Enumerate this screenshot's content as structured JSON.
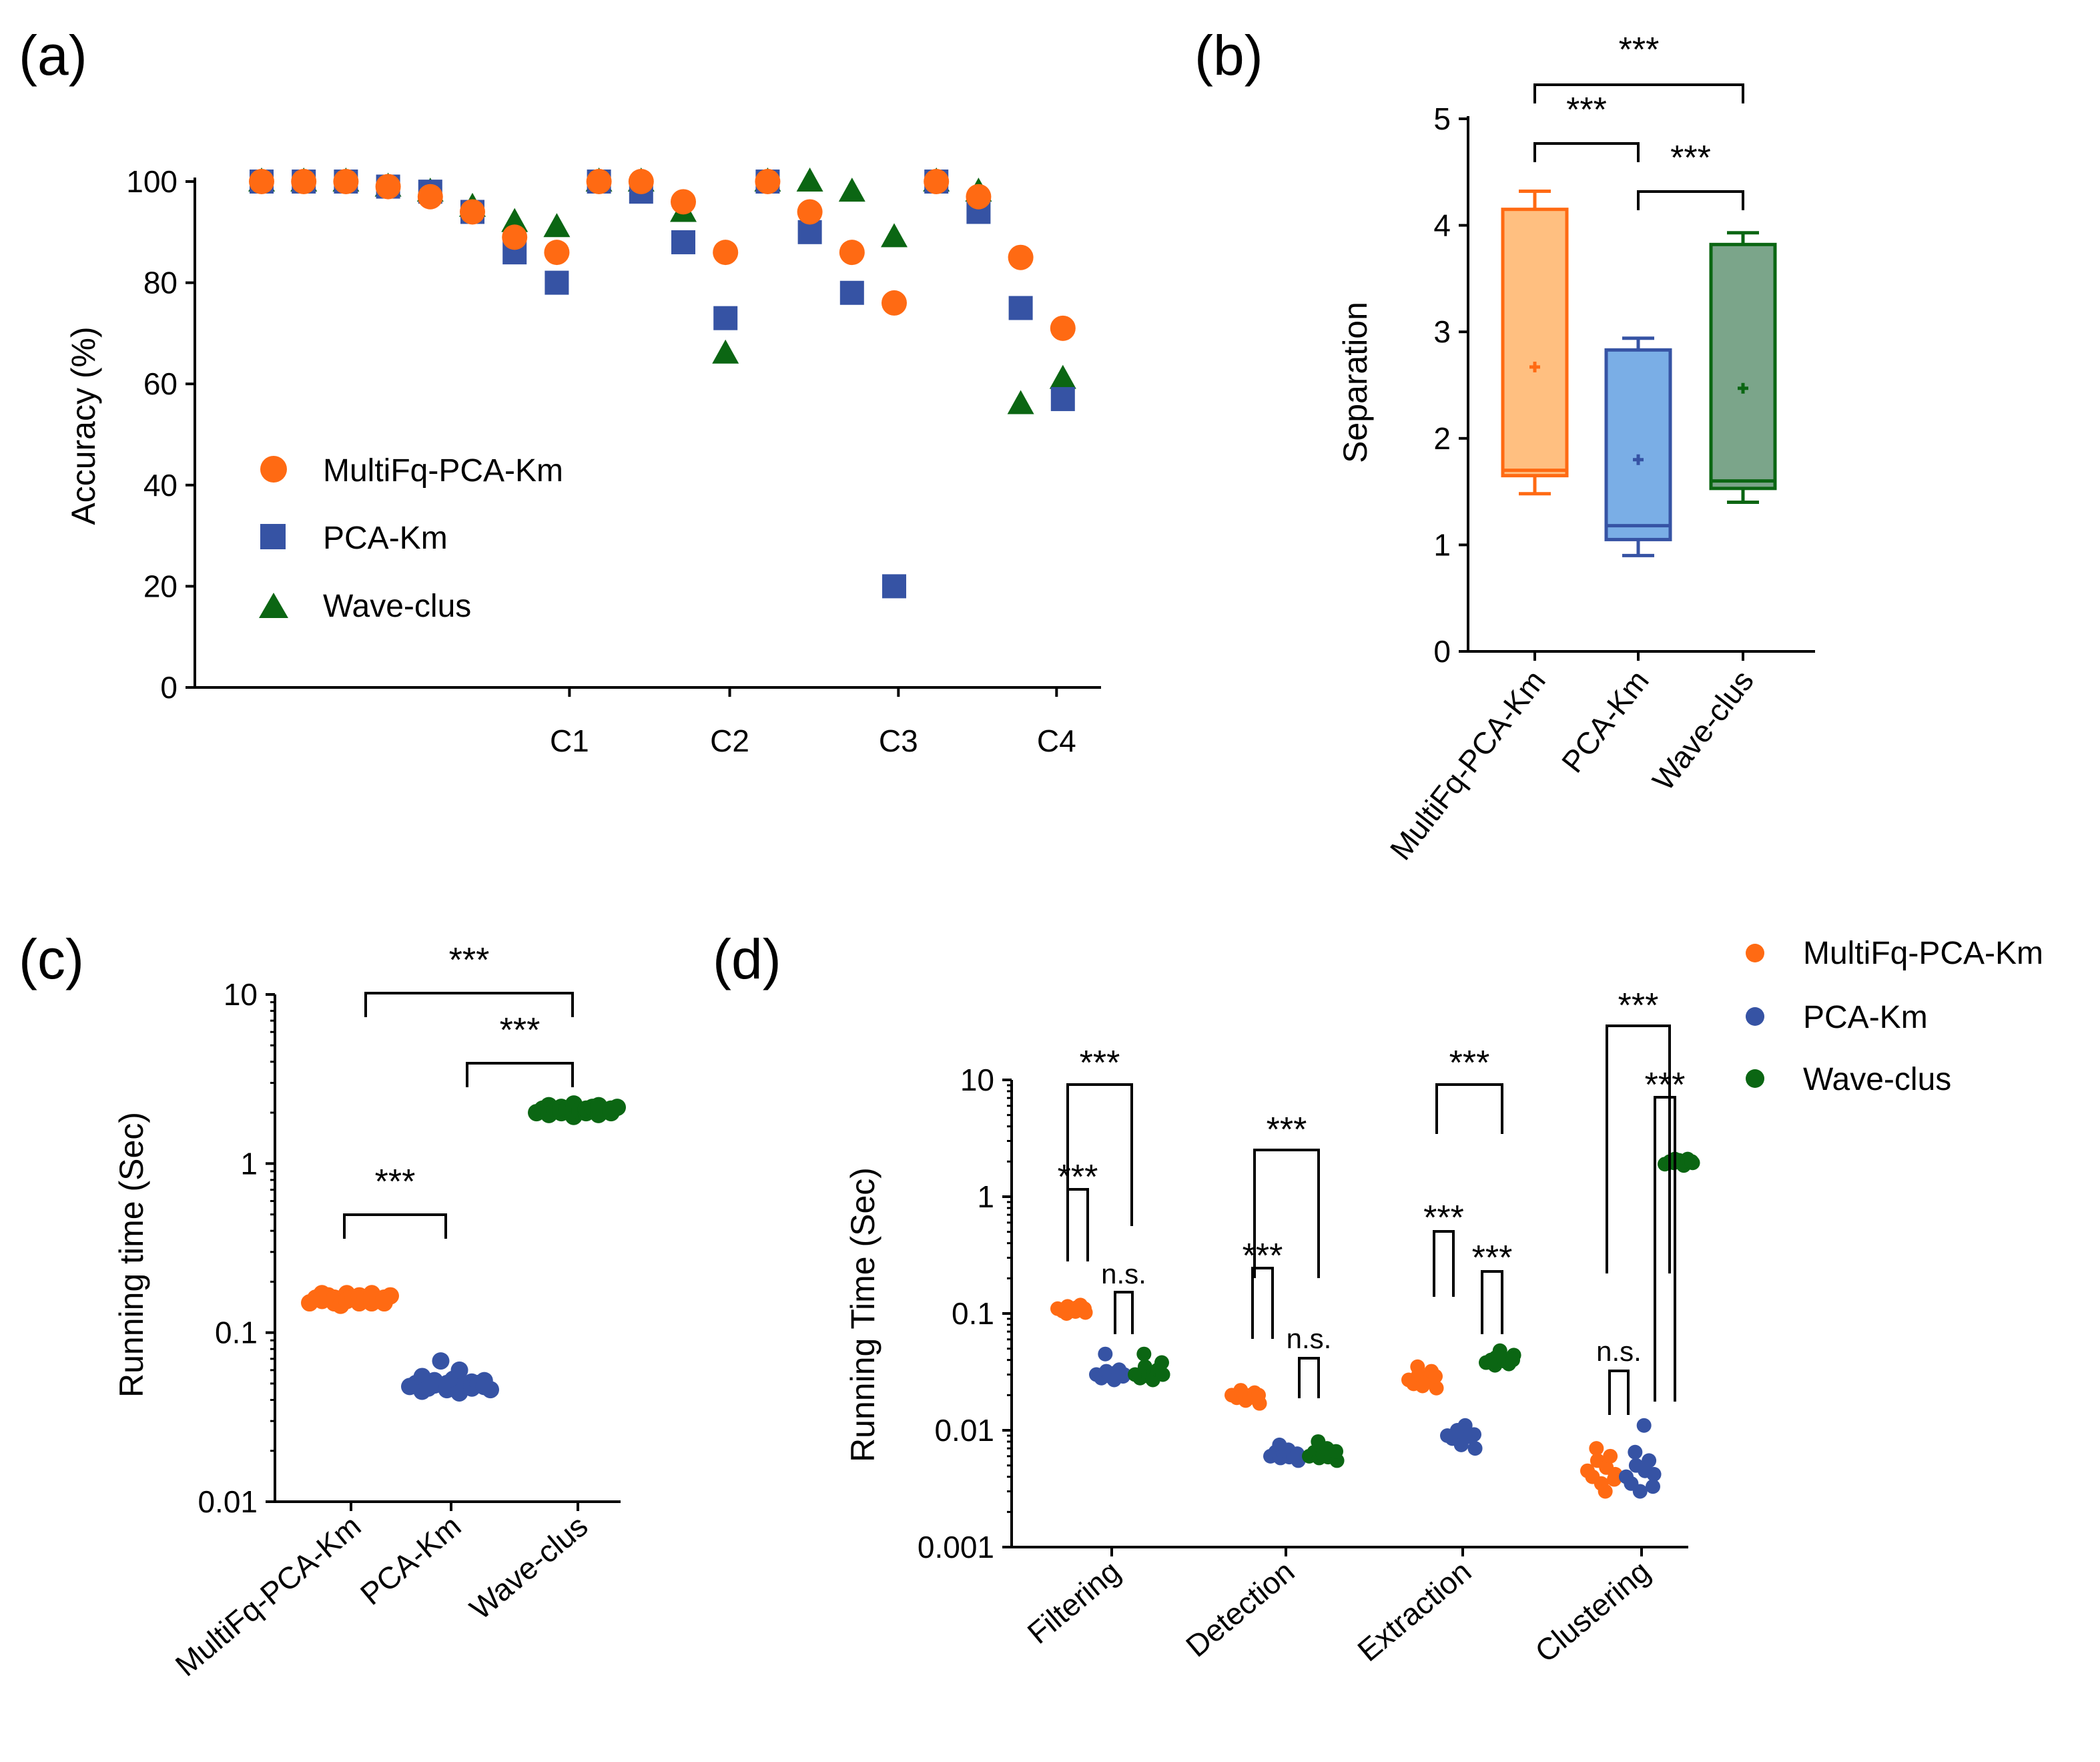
{
  "colors": {
    "multifq": "#FF6A13",
    "multifq_fill": "#FFBF80",
    "pca": "#3653A4",
    "pca_fill": "#7AAEE6",
    "wave": "#0B6613",
    "wave_fill": "#7BA58A"
  },
  "chart_data": [
    {
      "id": "a",
      "panel_label": "(a)",
      "type": "scatter",
      "ylabel": "Accuracy (%)",
      "xlabel": "",
      "ylim": [
        0,
        100
      ],
      "yticks": [
        "0",
        "20",
        "40",
        "60",
        "80",
        "100"
      ],
      "x_ticks": [
        {
          "label": "C1",
          "x": 8.3
        },
        {
          "label": "C2",
          "x": 12.1
        },
        {
          "label": "C3",
          "x": 16.1
        },
        {
          "label": "C4",
          "x": 19.85
        }
      ],
      "legend": [
        "MultiFq-PCA-Km",
        "PCA-Km",
        "Wave-clus"
      ],
      "series": [
        {
          "name": "MultiFq-PCA-Km",
          "marker": "circle",
          "points": [
            [
              1,
              100
            ],
            [
              2,
              100
            ],
            [
              3,
              100
            ],
            [
              4,
              99
            ],
            [
              5,
              97
            ],
            [
              6,
              94
            ],
            [
              7,
              89
            ],
            [
              8,
              86
            ],
            [
              9,
              100
            ],
            [
              10,
              100
            ],
            [
              11,
              96
            ],
            [
              12,
              86
            ],
            [
              13,
              100
            ],
            [
              14,
              94
            ],
            [
              15,
              86
            ],
            [
              16,
              76
            ],
            [
              17,
              100
            ],
            [
              18,
              97
            ],
            [
              19,
              85
            ],
            [
              20,
              71
            ]
          ]
        },
        {
          "name": "PCA-Km",
          "marker": "square",
          "points": [
            [
              1,
              100
            ],
            [
              2,
              100
            ],
            [
              3,
              100
            ],
            [
              4,
              99
            ],
            [
              5,
              98
            ],
            [
              6,
              94
            ],
            [
              7,
              86
            ],
            [
              8,
              80
            ],
            [
              9,
              100
            ],
            [
              10,
              98
            ],
            [
              11,
              88
            ],
            [
              12,
              73
            ],
            [
              13,
              100
            ],
            [
              14,
              90
            ],
            [
              15,
              78
            ],
            [
              16,
              20
            ],
            [
              17,
              100
            ],
            [
              18,
              94
            ],
            [
              19,
              75
            ],
            [
              20,
              57
            ]
          ]
        },
        {
          "name": "Wave-clus",
          "marker": "triangle",
          "points": [
            [
              1,
              100
            ],
            [
              2,
              100
            ],
            [
              3,
              100
            ],
            [
              4,
              99
            ],
            [
              5,
              98
            ],
            [
              6,
              95
            ],
            [
              7,
              92
            ],
            [
              8,
              91
            ],
            [
              9,
              100
            ],
            [
              10,
              100
            ],
            [
              11,
              94
            ],
            [
              12,
              66
            ],
            [
              13,
              100
            ],
            [
              14,
              100
            ],
            [
              15,
              98
            ],
            [
              16,
              89
            ],
            [
              17,
              100
            ],
            [
              18,
              98
            ],
            [
              19,
              56
            ],
            [
              20,
              61
            ]
          ]
        }
      ]
    },
    {
      "id": "b",
      "panel_label": "(b)",
      "type": "box",
      "ylabel": "Separation",
      "ylim": [
        0,
        5
      ],
      "yticks": [
        "0",
        "1",
        "2",
        "3",
        "4",
        "5"
      ],
      "categories": [
        "MultiFq-PCA-Km",
        "PCA-Km",
        "Wave-clus"
      ],
      "boxes": [
        {
          "name": "MultiFq-PCA-Km",
          "min": 1.48,
          "q1": 1.65,
          "median": 1.7,
          "q3": 4.15,
          "max": 4.32,
          "mean": 2.67
        },
        {
          "name": "PCA-Km",
          "min": 0.9,
          "q1": 1.05,
          "median": 1.18,
          "q3": 2.83,
          "max": 2.94,
          "mean": 1.8
        },
        {
          "name": "Wave-clus",
          "min": 1.4,
          "q1": 1.53,
          "median": 1.6,
          "q3": 3.82,
          "max": 3.93,
          "mean": 2.47
        }
      ],
      "comparisons": [
        {
          "a": 0,
          "b": 2,
          "label": "***"
        },
        {
          "a": 0,
          "b": 1,
          "label": "***"
        },
        {
          "a": 1,
          "b": 2,
          "label": "***"
        }
      ]
    },
    {
      "id": "c",
      "panel_label": "(c)",
      "type": "dot",
      "scale": "log",
      "ylabel": "Running time (Sec)",
      "ylim": [
        0.01,
        10
      ],
      "yticks": [
        "0.01",
        "0.1",
        "1",
        "10"
      ],
      "categories": [
        "MultiFq-PCA-Km",
        "PCA-Km",
        "Wave-clus"
      ],
      "groups": [
        {
          "name": "MultiFq-PCA-Km",
          "values": [
            0.15,
            0.16,
            0.17,
            0.155,
            0.165,
            0.15,
            0.16,
            0.145,
            0.17,
            0.155,
            0.16,
            0.15,
            0.165,
            0.16,
            0.15,
            0.17,
            0.155,
            0.16,
            0.15,
            0.165
          ]
        },
        {
          "name": "PCA-Km",
          "values": [
            0.048,
            0.05,
            0.045,
            0.055,
            0.047,
            0.052,
            0.049,
            0.068,
            0.046,
            0.05,
            0.053,
            0.044,
            0.06,
            0.049,
            0.051,
            0.047,
            0.05,
            0.048,
            0.052,
            0.046
          ]
        },
        {
          "name": "Wave-clus",
          "values": [
            2.0,
            2.1,
            2.2,
            1.95,
            2.05,
            2.15,
            2.0,
            2.1,
            1.9,
            2.25,
            2.05,
            2.0,
            2.1,
            2.15,
            1.95,
            2.2,
            2.05,
            2.1,
            2.0,
            2.15
          ]
        }
      ],
      "comparisons": [
        {
          "a": 0,
          "b": 2,
          "label": "***"
        },
        {
          "a": 1,
          "b": 2,
          "label": "***"
        },
        {
          "a": 0,
          "b": 1,
          "label": "***"
        }
      ]
    },
    {
      "id": "d",
      "panel_label": "(d)",
      "type": "dot",
      "scale": "log",
      "ylabel": "Running Time (Sec)",
      "ylim": [
        0.001,
        10
      ],
      "yticks": [
        "0.001",
        "0.01",
        "0.1",
        "1",
        "10"
      ],
      "categories": [
        "Filtering",
        "Detection",
        "Extraction",
        "Clustering"
      ],
      "legend": [
        "MultiFq-PCA-Km",
        "PCA-Km",
        "Wave-clus"
      ],
      "groups": [
        {
          "stage": "Filtering",
          "series": [
            {
              "name": "MultiFq-PCA-Km",
              "values": [
                0.11,
                0.105,
                0.115,
                0.1,
                0.108,
                0.112,
                0.104,
                0.118,
                0.102,
                0.11
              ]
            },
            {
              "name": "PCA-Km",
              "values": [
                0.03,
                0.028,
                0.032,
                0.045,
                0.029,
                0.031,
                0.027,
                0.033,
                0.03,
                0.029
              ]
            },
            {
              "name": "Wave-clus",
              "values": [
                0.03,
                0.028,
                0.035,
                0.045,
                0.029,
                0.031,
                0.027,
                0.033,
                0.03,
                0.038
              ]
            }
          ]
        },
        {
          "stage": "Detection",
          "series": [
            {
              "name": "MultiFq-PCA-Km",
              "values": [
                0.02,
                0.019,
                0.021,
                0.022,
                0.018,
                0.02,
                0.019,
                0.021,
                0.017,
                0.02
              ]
            },
            {
              "name": "PCA-Km",
              "values": [
                0.006,
                0.0065,
                0.0058,
                0.0075,
                0.0062,
                0.0059,
                0.0068,
                0.006,
                0.0055,
                0.0063
              ]
            },
            {
              "name": "Wave-clus",
              "values": [
                0.006,
                0.0065,
                0.0058,
                0.008,
                0.0062,
                0.0059,
                0.007,
                0.006,
                0.0055,
                0.0066
              ]
            }
          ]
        },
        {
          "stage": "Extraction",
          "series": [
            {
              "name": "MultiFq-PCA-Km",
              "values": [
                0.027,
                0.025,
                0.03,
                0.035,
                0.024,
                0.028,
                0.026,
                0.032,
                0.023,
                0.029
              ]
            },
            {
              "name": "PCA-Km",
              "values": [
                0.009,
                0.0085,
                0.01,
                0.0095,
                0.0075,
                0.009,
                0.011,
                0.0088,
                0.007,
                0.0092
              ]
            },
            {
              "name": "Wave-clus",
              "values": [
                0.038,
                0.04,
                0.042,
                0.036,
                0.048,
                0.039,
                0.041,
                0.037,
                0.044,
                0.04
              ]
            }
          ]
        },
        {
          "stage": "Clustering",
          "series": [
            {
              "name": "MultiFq-PCA-Km",
              "values": [
                0.0045,
                0.004,
                0.0055,
                0.007,
                0.0035,
                0.0048,
                0.003,
                0.006,
                0.0042,
                0.0038
              ]
            },
            {
              "name": "PCA-Km",
              "values": [
                0.004,
                0.0035,
                0.005,
                0.0065,
                0.003,
                0.0045,
                0.011,
                0.0055,
                0.0042,
                0.0033
              ]
            },
            {
              "name": "Wave-clus",
              "values": [
                1.9,
                2.0,
                2.1,
                1.95,
                2.05,
                1.85,
                2.0,
                2.1,
                1.95,
                2.0
              ]
            }
          ]
        }
      ],
      "comparisons": [
        {
          "stage": "Filtering",
          "a": 0,
          "b": 2,
          "label": "***"
        },
        {
          "stage": "Filtering",
          "a": 0,
          "b": 1,
          "label": "***"
        },
        {
          "stage": "Filtering",
          "a": 1,
          "b": 2,
          "label": "n.s."
        },
        {
          "stage": "Detection",
          "a": 0,
          "b": 2,
          "label": "***"
        },
        {
          "stage": "Detection",
          "a": 0,
          "b": 1,
          "label": "***"
        },
        {
          "stage": "Detection",
          "a": 1,
          "b": 2,
          "label": "n.s."
        },
        {
          "stage": "Extraction",
          "a": 0,
          "b": 2,
          "label": "***"
        },
        {
          "stage": "Extraction",
          "a": 0,
          "b": 1,
          "label": "***"
        },
        {
          "stage": "Extraction",
          "a": 1,
          "b": 2,
          "label": "***"
        },
        {
          "stage": "Clustering",
          "a": 0,
          "b": 2,
          "label": "***"
        },
        {
          "stage": "Clustering",
          "a": 1,
          "b": 2,
          "label": "***"
        },
        {
          "stage": "Clustering",
          "a": 0,
          "b": 1,
          "label": "n.s."
        }
      ]
    }
  ]
}
